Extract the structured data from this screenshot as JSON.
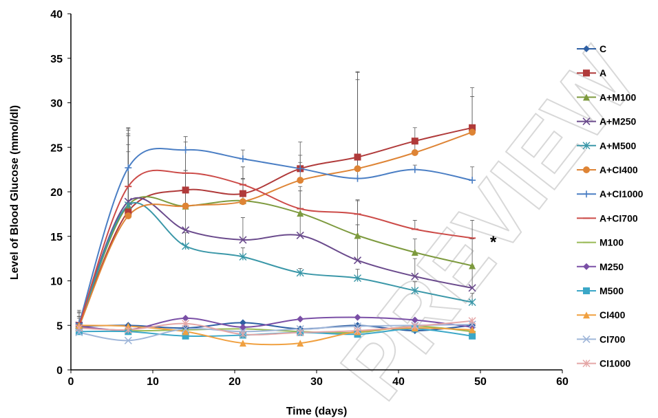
{
  "watermark": "PREVIEW",
  "chart_data": {
    "type": "line",
    "xlabel": "Time (days)",
    "ylabel": "Level of Blood Glucose (mmol/dl)",
    "xlim": [
      0,
      60
    ],
    "ylim": [
      0,
      40
    ],
    "xticks": [
      0,
      10,
      20,
      30,
      40,
      50,
      60
    ],
    "yticks": [
      0,
      5,
      10,
      15,
      20,
      25,
      30,
      35,
      40
    ],
    "grid": false,
    "legend_position": "right",
    "annotation": "*",
    "x": [
      1,
      7,
      14,
      21,
      28,
      35,
      42,
      49
    ],
    "series": [
      {
        "name": "C",
        "color": "#2e5fa3",
        "marker": "diamond",
        "values": [
          4.9,
          5.0,
          4.7,
          5.3,
          4.6,
          5.0,
          4.4,
          5.0
        ]
      },
      {
        "name": "A",
        "color": "#b03a3a",
        "marker": "square",
        "values": [
          5.0,
          17.8,
          20.2,
          19.8,
          22.6,
          23.9,
          25.7,
          27.2
        ],
        "error": [
          1.5,
          8.5,
          4.5,
          3.0,
          3.0,
          9.5,
          1.5,
          4.5
        ]
      },
      {
        "name": "A+M100",
        "color": "#7d9a3e",
        "marker": "triangle",
        "values": [
          5.0,
          18.5,
          18.4,
          19.0,
          17.6,
          15.1,
          13.2,
          11.7
        ],
        "error": [
          1.0,
          8.0,
          4.0,
          2.5,
          3.0,
          4.0,
          1.5,
          3.0
        ]
      },
      {
        "name": "A+M250",
        "color": "#6a4a8c",
        "marker": "x",
        "values": [
          5.0,
          18.9,
          15.7,
          14.6,
          15.1,
          12.3,
          10.5,
          9.2
        ],
        "error": [
          1.0,
          8.0,
          3.0,
          2.5,
          2.5,
          4.0,
          2.0,
          2.5
        ]
      },
      {
        "name": "A+M500",
        "color": "#3a97a8",
        "marker": "star",
        "values": [
          4.8,
          18.5,
          13.9,
          12.7,
          10.9,
          10.3,
          8.9,
          7.6
        ],
        "error": [
          1.0,
          6.0,
          1.5,
          1.0,
          0.5,
          1.0,
          1.0,
          1.0
        ]
      },
      {
        "name": "A+CI400",
        "color": "#de8435",
        "marker": "circle",
        "values": [
          4.9,
          17.3,
          18.4,
          18.9,
          21.3,
          22.6,
          24.4,
          26.7
        ],
        "error": [
          1.5,
          8.0,
          4.0,
          2.5,
          2.0,
          10.0,
          1.5,
          4.0
        ]
      },
      {
        "name": "A+CI1000",
        "color": "#4a7ec4",
        "marker": "plus",
        "values": [
          5.2,
          22.7,
          24.7,
          23.7,
          22.6,
          21.5,
          22.5,
          21.3
        ],
        "error": [
          1.5,
          4.5,
          1.5,
          1.0,
          1.5,
          12.0,
          0.5,
          1.5
        ]
      },
      {
        "name": "A+CI700",
        "color": "#cc4b48",
        "marker": "dash",
        "values": [
          5.0,
          20.6,
          22.1,
          20.8,
          18.1,
          17.5,
          15.8,
          14.8
        ],
        "error": [
          1.0,
          6.5,
          3.5,
          2.0,
          2.0,
          1.5,
          1.0,
          2.0
        ]
      },
      {
        "name": "M100",
        "color": "#98b954",
        "marker": "dash",
        "values": [
          4.8,
          4.4,
          4.5,
          4.6,
          4.3,
          4.2,
          4.9,
          4.3
        ]
      },
      {
        "name": "M250",
        "color": "#7a4fa6",
        "marker": "diamond",
        "values": [
          4.9,
          4.5,
          5.8,
          4.8,
          5.7,
          5.9,
          5.6,
          4.8
        ]
      },
      {
        "name": "M500",
        "color": "#3ba7c7",
        "marker": "square",
        "values": [
          4.3,
          4.3,
          3.8,
          3.9,
          4.2,
          4.0,
          4.6,
          3.8
        ]
      },
      {
        "name": "CI400",
        "color": "#f0a040",
        "marker": "triangle",
        "values": [
          5.0,
          4.9,
          4.3,
          3.0,
          3.0,
          4.3,
          4.7,
          4.5
        ]
      },
      {
        "name": "CI700",
        "color": "#9fb6d9",
        "marker": "x",
        "values": [
          4.2,
          3.3,
          4.6,
          4.3,
          4.6,
          4.9,
          5.0,
          5.1
        ]
      },
      {
        "name": "CI1000",
        "color": "#e4a6a6",
        "marker": "star",
        "values": [
          4.7,
          4.5,
          5.2,
          4.0,
          4.2,
          4.4,
          4.9,
          5.5
        ]
      }
    ]
  }
}
